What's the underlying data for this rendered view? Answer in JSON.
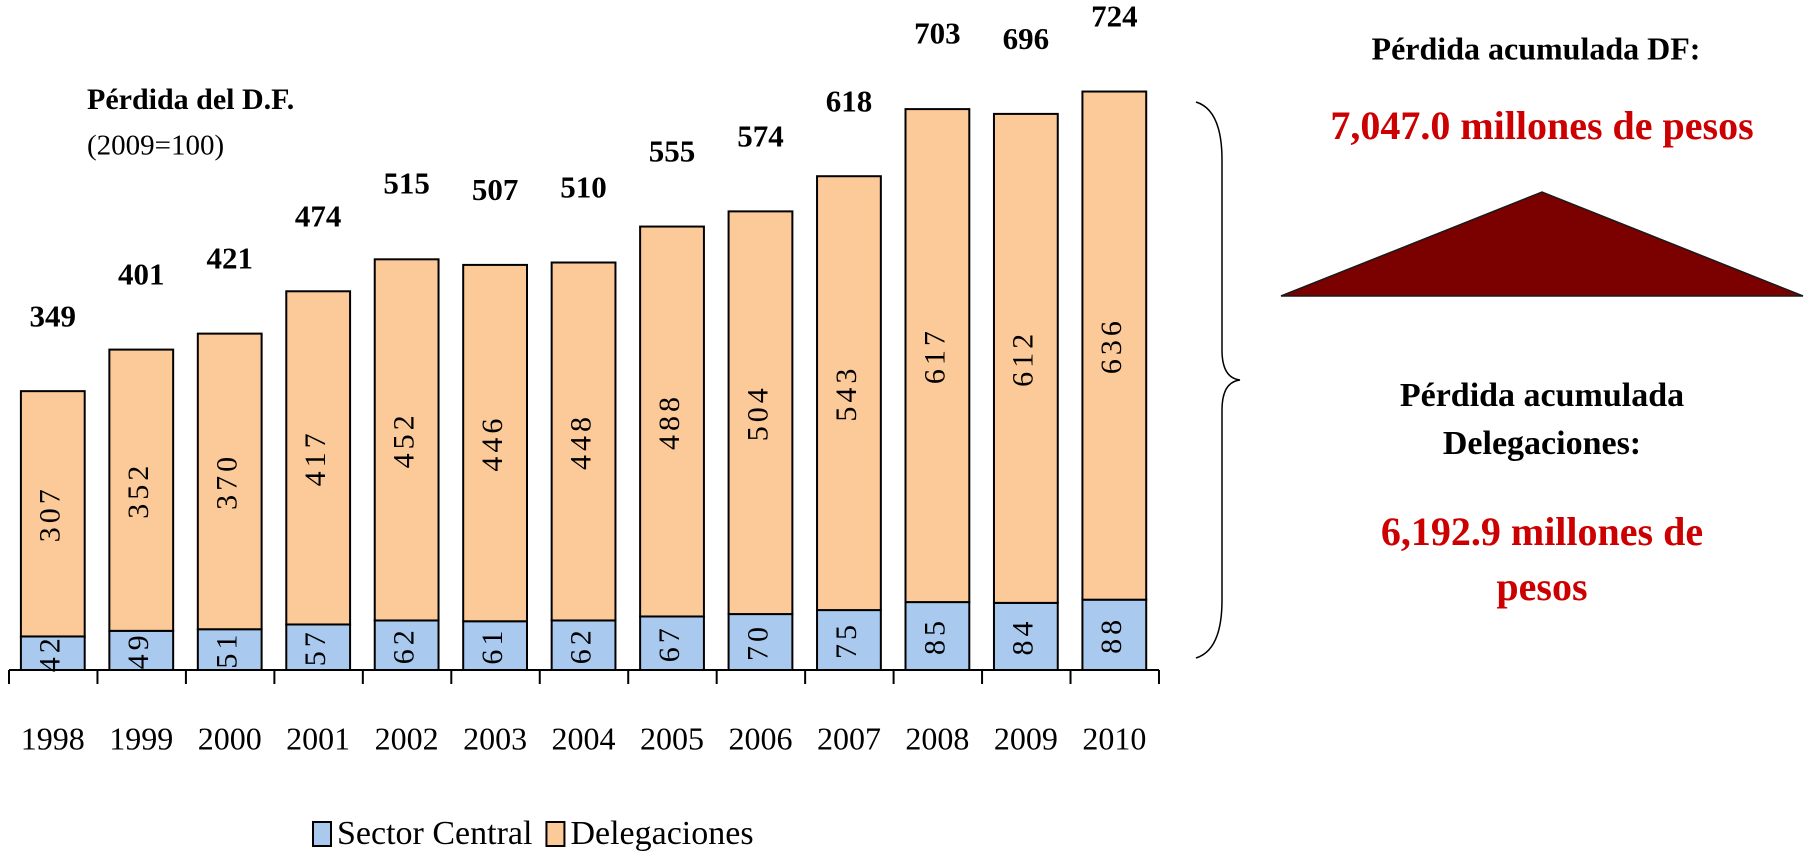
{
  "chart_data": {
    "type": "stacked_bar",
    "title": "Pérdida del D.F.",
    "subtitle": "(2009=100)",
    "categories": [
      "1998",
      "1999",
      "2000",
      "2001",
      "2002",
      "2003",
      "2004",
      "2005",
      "2006",
      "2007",
      "2008",
      "2009",
      "2010"
    ],
    "series": [
      {
        "name": "Sector Central",
        "color": "#a9c9ef",
        "values": [
          42,
          49,
          51,
          57,
          62,
          61,
          62,
          67,
          70,
          75,
          85,
          84,
          88
        ]
      },
      {
        "name": "Delegaciones",
        "color": "#fcc998",
        "values": [
          307,
          352,
          370,
          417,
          452,
          446,
          448,
          488,
          504,
          543,
          617,
          612,
          636
        ]
      }
    ],
    "totals": [
      349,
      401,
      421,
      474,
      515,
      507,
      510,
      555,
      574,
      618,
      703,
      696,
      724
    ],
    "annotations": [
      "Pérdida acumulada DF:",
      "7,047.0 millones de pesos",
      "Pérdida acumulada",
      "Delegaciones:",
      "6,192.9 millones de",
      "pesos"
    ]
  }
}
